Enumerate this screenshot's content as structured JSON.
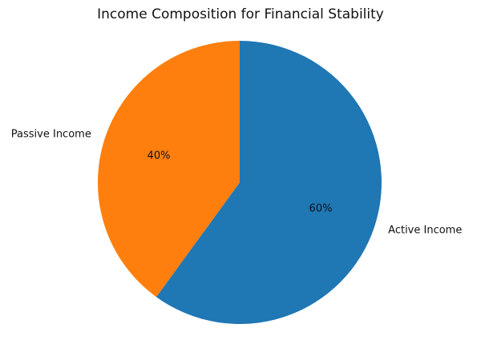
{
  "chart_data": {
    "type": "pie",
    "title": "Income Composition for Financial Stability",
    "slices": [
      {
        "label": "Active Income",
        "value": 60,
        "pct_label": "60%",
        "color": "#1f77b4"
      },
      {
        "label": "Passive Income",
        "value": 40,
        "pct_label": "40%",
        "color": "#ff7f0e"
      }
    ],
    "start_angle": 90,
    "direction": "clockwise",
    "legend": "none"
  }
}
